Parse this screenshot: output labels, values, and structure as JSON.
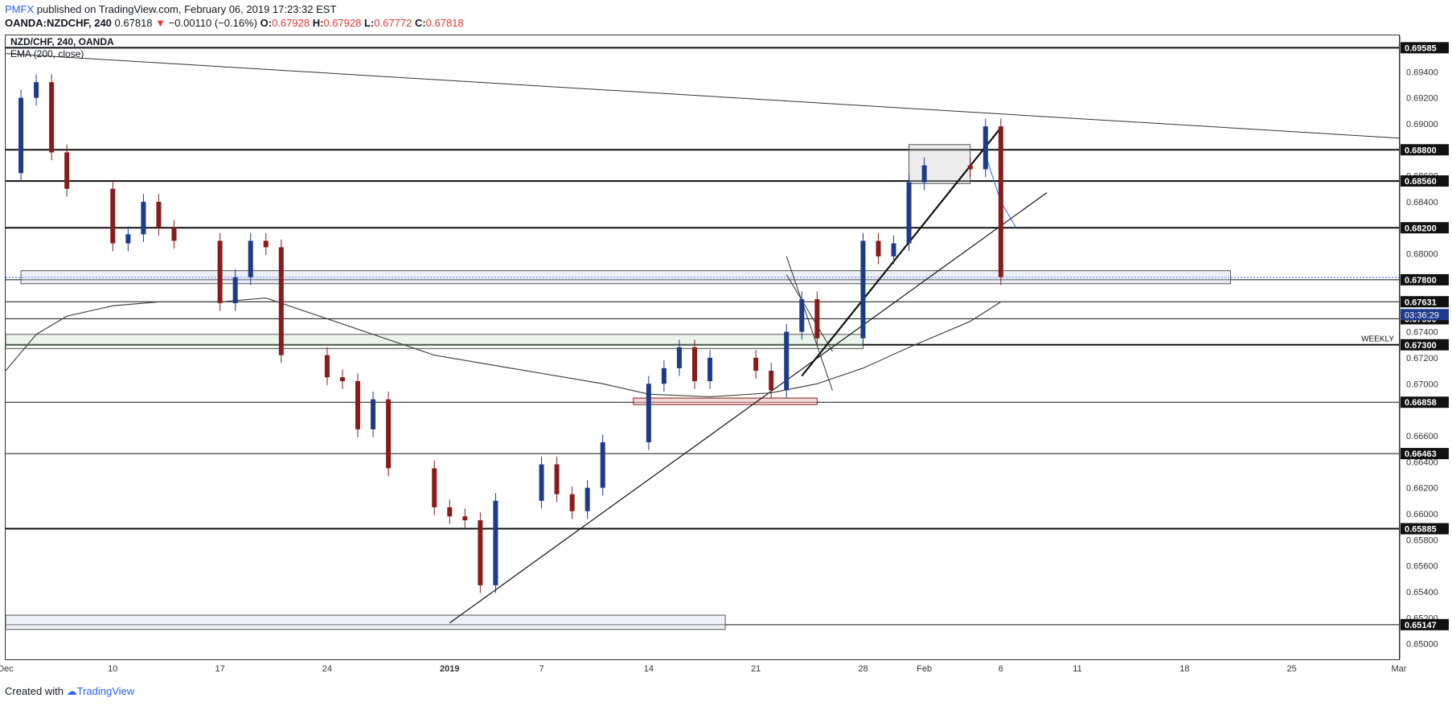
{
  "header": {
    "publisher": "PMFX",
    "published_text": "published on TradingView.com, February 06, 2019 17:23:32 EST",
    "symbol": "OANDA:NZDCHF, 240",
    "price": "0.67818",
    "change": "−0.00110 (−0.16%)",
    "open_label": "O:",
    "open": "0.67928",
    "high_label": "H:",
    "high": "0.67928",
    "low_label": "L:",
    "low": "0.67772",
    "close_label": "C:",
    "close": "0.67818"
  },
  "legend": {
    "title": "NZD/CHF, 240, OANDA",
    "indicator": "EMA (200, close)"
  },
  "footer": {
    "created_with": "Created with",
    "brand": "TradingView"
  },
  "colors": {
    "up": "#1e3a8a",
    "down": "#8b1a1a",
    "accent": "#2962ff",
    "frame": "#333333"
  },
  "chart_data": {
    "type": "line",
    "ylim": [
      0.6488,
      0.6968
    ],
    "xlim": [
      "2018-12-03",
      "2019-03-04"
    ],
    "y_ticks": [
      "0.69400",
      "0.69200",
      "0.69000",
      "0.68600",
      "0.68400",
      "0.68000",
      "0.67400",
      "0.67200",
      "0.67000",
      "0.66600",
      "0.66400",
      "0.66200",
      "0.66000",
      "0.65800",
      "0.65600",
      "0.65400",
      "0.65200",
      "0.65000"
    ],
    "x_ticks": [
      {
        "label": "Dec",
        "date": "2018-12-03"
      },
      {
        "label": "10",
        "date": "2018-12-10"
      },
      {
        "label": "17",
        "date": "2018-12-17"
      },
      {
        "label": "24",
        "date": "2018-12-24"
      },
      {
        "label": "2019",
        "date": "2019-01-01"
      },
      {
        "label": "7",
        "date": "2019-01-07"
      },
      {
        "label": "14",
        "date": "2019-01-14"
      },
      {
        "label": "21",
        "date": "2019-01-21"
      },
      {
        "label": "28",
        "date": "2019-01-28"
      },
      {
        "label": "Feb",
        "date": "2019-02-01"
      },
      {
        "label": "6",
        "date": "2019-02-06"
      },
      {
        "label": "11",
        "date": "2019-02-11"
      },
      {
        "label": "18",
        "date": "2019-02-18"
      },
      {
        "label": "25",
        "date": "2019-02-25"
      },
      {
        "label": "Mar",
        "date": "2019-03-04"
      }
    ],
    "level_labels": [
      {
        "value": 0.69585,
        "label": "0.69585"
      },
      {
        "value": 0.688,
        "label": "0.68800"
      },
      {
        "value": 0.6856,
        "label": "0.68560"
      },
      {
        "value": 0.682,
        "label": "0.68200"
      },
      {
        "value": 0.678,
        "label": "0.67800"
      },
      {
        "value": 0.67631,
        "label": "0.67631"
      },
      {
        "value": 0.675,
        "label": "0.67500"
      },
      {
        "value": 0.673,
        "label": "0.67300"
      },
      {
        "value": 0.66858,
        "label": "0.66858"
      },
      {
        "value": 0.66463,
        "label": "0.66463"
      },
      {
        "value": 0.65885,
        "label": "0.65885"
      },
      {
        "value": 0.65147,
        "label": "0.65147"
      }
    ],
    "countdown": "03:36:29",
    "weekly_label": "WEEKLY",
    "close_series": [
      [
        "2018-12-03",
        0.6862
      ],
      [
        "2018-12-04",
        0.692
      ],
      [
        "2018-12-05",
        0.6932
      ],
      [
        "2018-12-06",
        0.6878
      ],
      [
        "2018-12-07",
        0.685
      ],
      [
        "2018-12-10",
        0.6808
      ],
      [
        "2018-12-11",
        0.6815
      ],
      [
        "2018-12-12",
        0.684
      ],
      [
        "2018-12-13",
        0.682
      ],
      [
        "2018-12-14",
        0.681
      ],
      [
        "2018-12-17",
        0.6762
      ],
      [
        "2018-12-18",
        0.6782
      ],
      [
        "2018-12-19",
        0.681
      ],
      [
        "2018-12-20",
        0.6805
      ],
      [
        "2018-12-21",
        0.6722
      ],
      [
        "2018-12-24",
        0.6705
      ],
      [
        "2018-12-25",
        0.6702
      ],
      [
        "2018-12-26",
        0.6665
      ],
      [
        "2018-12-27",
        0.6688
      ],
      [
        "2018-12-28",
        0.6635
      ],
      [
        "2018-12-31",
        0.6605
      ],
      [
        "2019-01-01",
        0.6598
      ],
      [
        "2019-01-02",
        0.6595
      ],
      [
        "2019-01-03",
        0.6545
      ],
      [
        "2019-01-04",
        0.661
      ],
      [
        "2019-01-07",
        0.6638
      ],
      [
        "2019-01-08",
        0.6615
      ],
      [
        "2019-01-09",
        0.6602
      ],
      [
        "2019-01-10",
        0.662
      ],
      [
        "2019-01-11",
        0.6655
      ],
      [
        "2019-01-14",
        0.67
      ],
      [
        "2019-01-15",
        0.6712
      ],
      [
        "2019-01-16",
        0.6728
      ],
      [
        "2019-01-17",
        0.6702
      ],
      [
        "2019-01-18",
        0.672
      ],
      [
        "2019-01-21",
        0.671
      ],
      [
        "2019-01-22",
        0.6695
      ],
      [
        "2019-01-23",
        0.674
      ],
      [
        "2019-01-24",
        0.6765
      ],
      [
        "2019-01-25",
        0.6735
      ],
      [
        "2019-01-28",
        0.681
      ],
      [
        "2019-01-29",
        0.6798
      ],
      [
        "2019-01-30",
        0.6808
      ],
      [
        "2019-01-31",
        0.6855
      ],
      [
        "2019-02-01",
        0.6868
      ],
      [
        "2019-02-04",
        0.6865
      ],
      [
        "2019-02-05",
        0.6898
      ],
      [
        "2019-02-06",
        0.6782
      ]
    ],
    "ema_series": [
      [
        "2018-12-03",
        0.671
      ],
      [
        "2018-12-05",
        0.6738
      ],
      [
        "2018-12-07",
        0.6752
      ],
      [
        "2018-12-10",
        0.676
      ],
      [
        "2018-12-13",
        0.6763
      ],
      [
        "2018-12-17",
        0.6763
      ],
      [
        "2018-12-20",
        0.6766
      ],
      [
        "2018-12-24",
        0.675
      ],
      [
        "2018-12-31",
        0.6722
      ],
      [
        "2019-01-07",
        0.6708
      ],
      [
        "2019-01-11",
        0.67
      ],
      [
        "2019-01-14",
        0.6692
      ],
      [
        "2019-01-18",
        0.669
      ],
      [
        "2019-01-22",
        0.6693
      ],
      [
        "2019-01-25",
        0.67
      ],
      [
        "2019-01-28",
        0.6712
      ],
      [
        "2019-01-31",
        0.6728
      ],
      [
        "2019-02-04",
        0.6748
      ],
      [
        "2019-02-06",
        0.6763
      ]
    ]
  }
}
